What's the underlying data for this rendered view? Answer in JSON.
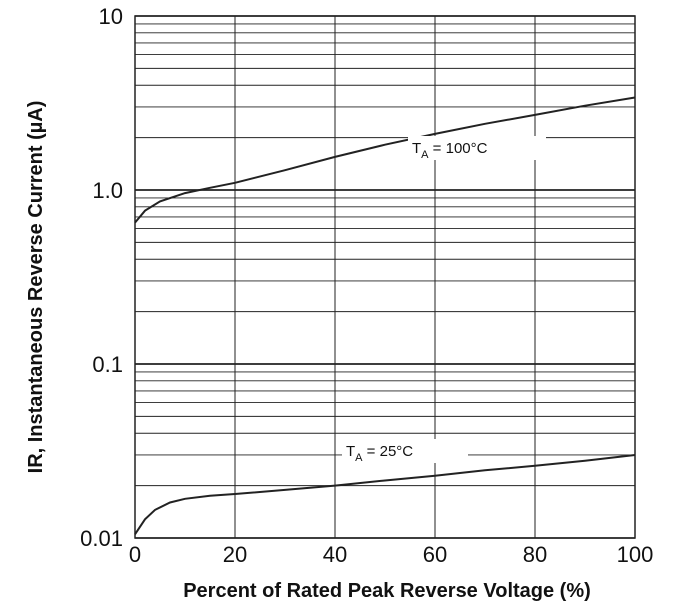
{
  "chart_data": {
    "type": "line",
    "title": "",
    "xlabel": "Percent of Rated Peak Reverse Voltage (%)",
    "ylabel": "IR, Instantaneous Reverse Current (µA)",
    "xlim": [
      0,
      100
    ],
    "ylim": [
      0.01,
      10
    ],
    "yscale": "log",
    "grid": true,
    "x_ticks": [
      {
        "value": 0,
        "label": "0"
      },
      {
        "value": 20,
        "label": "20"
      },
      {
        "value": 40,
        "label": "40"
      },
      {
        "value": 60,
        "label": "60"
      },
      {
        "value": 80,
        "label": "80"
      },
      {
        "value": 100,
        "label": "100"
      }
    ],
    "y_ticks": [
      {
        "value": 0.01,
        "label": "0.01"
      },
      {
        "value": 0.1,
        "label": "0.1"
      },
      {
        "value": 1,
        "label": "1.0"
      },
      {
        "value": 10,
        "label": "10"
      }
    ],
    "series": [
      {
        "label_main": "T",
        "label_sub": "A",
        "label_rest": " = 100°C",
        "color": "#222222",
        "x": [
          0,
          2,
          5,
          10,
          15,
          20,
          30,
          40,
          50,
          60,
          70,
          80,
          90,
          100
        ],
        "y": [
          0.65,
          0.76,
          0.86,
          0.96,
          1.03,
          1.1,
          1.3,
          1.55,
          1.82,
          2.1,
          2.4,
          2.7,
          3.05,
          3.4
        ]
      },
      {
        "label_main": "T",
        "label_sub": "A",
        "label_rest": " = 25°C",
        "color": "#222222",
        "x": [
          0,
          2,
          4,
          7,
          10,
          15,
          20,
          30,
          40,
          50,
          60,
          70,
          80,
          90,
          100
        ],
        "y": [
          0.0105,
          0.0128,
          0.0145,
          0.016,
          0.0168,
          0.0175,
          0.0179,
          0.0189,
          0.02,
          0.0214,
          0.0228,
          0.0245,
          0.026,
          0.0278,
          0.03
        ]
      }
    ]
  }
}
